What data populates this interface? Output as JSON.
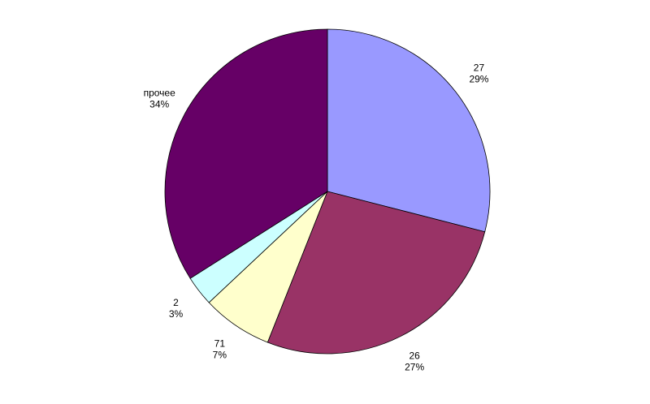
{
  "chart_data": {
    "type": "pie",
    "categories": [
      "27",
      "26",
      "71",
      "2",
      "прочее"
    ],
    "values": [
      29,
      27,
      7,
      3,
      34
    ],
    "value_labels": [
      "29%",
      "27%",
      "7%",
      "3%",
      "34%"
    ],
    "colors": [
      "#9999ff",
      "#993366",
      "#ffffcc",
      "#ccffff",
      "#660066"
    ]
  }
}
